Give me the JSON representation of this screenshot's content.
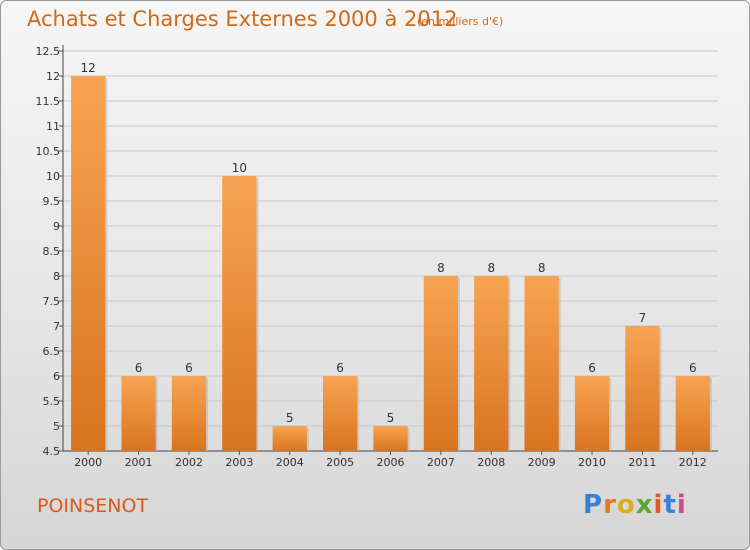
{
  "header": {
    "title": "Achats et Charges Externes 2000 à 2012",
    "unit": "(en milliers d'€)"
  },
  "footer": {
    "commune": "POINSENOT",
    "logo": "Proxiti"
  },
  "colors": {
    "bar_top": "#f7a452",
    "bar_bottom": "#d9741f",
    "text_accent": "#d06a1a",
    "grid": "#c8c8c8"
  },
  "chart_data": {
    "type": "bar",
    "title": "Achats et Charges Externes 2000 à 2012",
    "subtitle": "(en milliers d'€)",
    "categories": [
      "2000",
      "2001",
      "2002",
      "2003",
      "2004",
      "2005",
      "2006",
      "2007",
      "2008",
      "2009",
      "2010",
      "2011",
      "2012"
    ],
    "values": [
      12,
      6,
      6,
      10,
      5,
      6,
      5,
      8,
      8,
      8,
      6,
      7,
      6
    ],
    "data_labels": [
      "12",
      "6",
      "6",
      "10",
      "5",
      "6",
      "5",
      "8",
      "8",
      "8",
      "6",
      "7",
      "6"
    ],
    "ylim": [
      4.5,
      12.5
    ],
    "yticks": [
      "4.5",
      "5",
      "5.5",
      "6",
      "6.5",
      "7",
      "7.5",
      "8",
      "8.5",
      "9",
      "9.5",
      "10",
      "10.5",
      "11",
      "11.5",
      "12",
      "12.5"
    ],
    "grid": true,
    "legend": "none"
  }
}
